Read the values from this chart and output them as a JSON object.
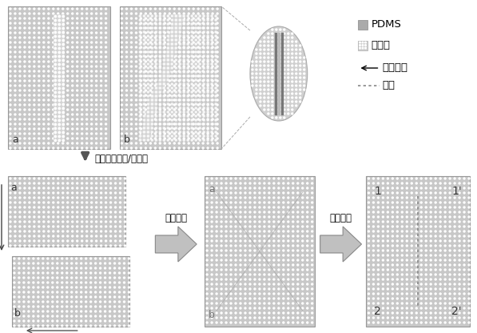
{
  "bg_color": "#c8c8c8",
  "dot_color": "#bbbbbb",
  "channel_light": "#d8d8d8",
  "legend_pdms": "PDMS",
  "legend_channel": "微通道",
  "legend_slide": "滑动方向",
  "legend_cell": "细胞",
  "label_plasma": "等离子体处理/水处理",
  "label_align": "对准键合",
  "label_capture": "细胞捕获"
}
